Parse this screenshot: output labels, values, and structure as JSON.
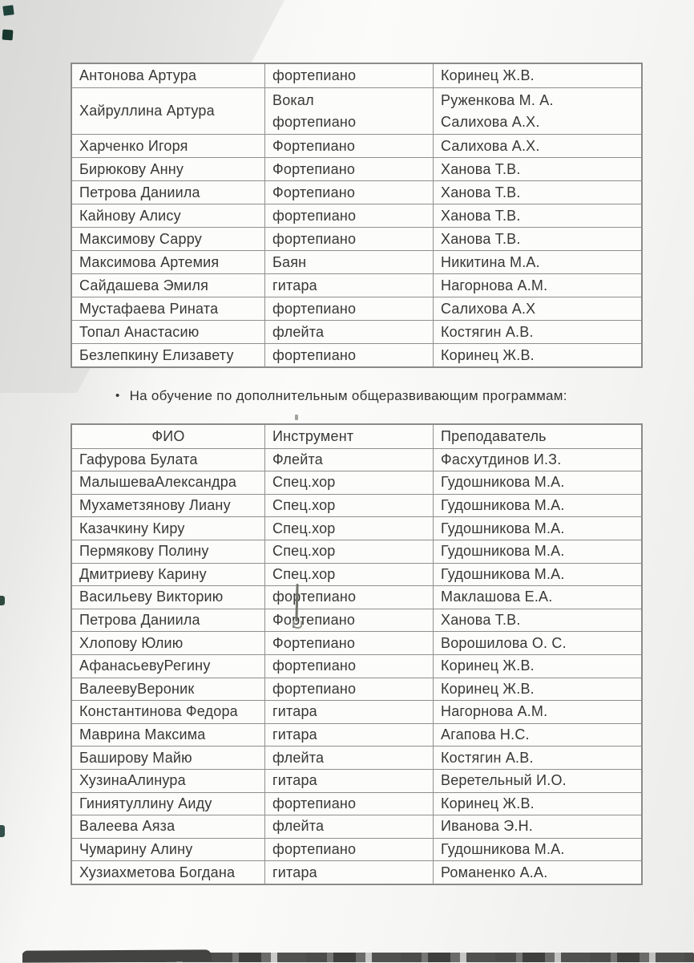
{
  "document": {
    "bullet_marker": "•",
    "bullet_text": "На обучение по дополнительным общеразвивающим программам:"
  },
  "colors": {
    "page_bg": "#f1f1ef",
    "table_bg": "#fcfcfa",
    "table_border": "#8f8f8d",
    "text": "#383838",
    "corner_mark_teal": "#1f423a",
    "bottom_bar": "#4c4c4a"
  },
  "tables": [
    {
      "name": "enrolled-students-table",
      "headers": null,
      "rows": [
        [
          [
            "Антонова Артура"
          ],
          [
            "фортепиано"
          ],
          [
            "Коринец Ж.В."
          ]
        ],
        [
          [
            "Хайруллина Артура"
          ],
          [
            "Вокал",
            "фортепиано"
          ],
          [
            "Руженкова М. А.",
            "Салихова А.Х."
          ]
        ],
        [
          [
            "Харченко Игоря"
          ],
          [
            "Фортепиано"
          ],
          [
            "Салихова А.Х."
          ]
        ],
        [
          [
            "Бирюкову Анну"
          ],
          [
            "Фортепиано"
          ],
          [
            "Ханова Т.В."
          ]
        ],
        [
          [
            "Петрова Даниила"
          ],
          [
            "Фортепиано"
          ],
          [
            "Ханова Т.В."
          ]
        ],
        [
          [
            "Кайнову Алису"
          ],
          [
            "фортепиано"
          ],
          [
            "Ханова Т.В."
          ]
        ],
        [
          [
            "Максимову Сарру"
          ],
          [
            "фортепиано"
          ],
          [
            "Ханова Т.В."
          ]
        ],
        [
          [
            "Максимова Артемия"
          ],
          [
            "Баян"
          ],
          [
            "Никитина М.А."
          ]
        ],
        [
          [
            "Сайдашева Эмиля"
          ],
          [
            "гитара"
          ],
          [
            "Нагорнова А.М."
          ]
        ],
        [
          [
            "Мустафаева Рината"
          ],
          [
            "фортепиано"
          ],
          [
            "Салихова А.Х"
          ]
        ],
        [
          [
            "Топал Анастасию"
          ],
          [
            "флейта"
          ],
          [
            "Костягин А.В."
          ]
        ],
        [
          [
            "Безлепкину Елизавету"
          ],
          [
            "фортепиано"
          ],
          [
            "Коринец Ж.В."
          ]
        ]
      ]
    },
    {
      "name": "general-development-programs-table",
      "headers": [
        "ФИО",
        "Инструмент",
        "Преподаватель"
      ],
      "rows": [
        [
          [
            "Гафурова Булата"
          ],
          [
            "Флейта"
          ],
          [
            "Фасхутдинов И.З."
          ]
        ],
        [
          [
            "МалышеваАлександра"
          ],
          [
            "Спец.хор"
          ],
          [
            "Гудошникова М.А."
          ]
        ],
        [
          [
            "Мухаметзянову Лиану"
          ],
          [
            "Спец.хор"
          ],
          [
            "Гудошникова М.А."
          ]
        ],
        [
          [
            "Казачкину Киру"
          ],
          [
            "Спец.хор"
          ],
          [
            "Гудошникова М.А."
          ]
        ],
        [
          [
            "Пермякову Полину"
          ],
          [
            "Спец.хор"
          ],
          [
            "Гудошникова М.А."
          ]
        ],
        [
          [
            "Дмитриеву Карину"
          ],
          [
            "Спец.хор"
          ],
          [
            "Гудошникова М.А."
          ]
        ],
        [
          [
            "Васильеву Викторию"
          ],
          [
            "фортепиано"
          ],
          [
            "Маклашова Е.А."
          ]
        ],
        [
          [
            "Петрова Даниила"
          ],
          [
            "Фортепиано"
          ],
          [
            "Ханова Т.В."
          ]
        ],
        [
          [
            "Хлопову Юлию"
          ],
          [
            "Фортепиано"
          ],
          [
            "Ворошилова О. С."
          ]
        ],
        [
          [
            "АфанасьевуРегину"
          ],
          [
            "фортепиано"
          ],
          [
            "Коринец Ж.В."
          ]
        ],
        [
          [
            "ВалеевуВероник"
          ],
          [
            "фортепиано"
          ],
          [
            "Коринец Ж.В."
          ]
        ],
        [
          [
            "Константинова Федора"
          ],
          [
            "гитара"
          ],
          [
            "Нагорнова А.М."
          ]
        ],
        [
          [
            "Маврина Максима"
          ],
          [
            "гитара"
          ],
          [
            "Агапова Н.С."
          ]
        ],
        [
          [
            "Баширову Майю"
          ],
          [
            "флейта"
          ],
          [
            "Костягин А.В."
          ]
        ],
        [
          [
            "ХузинаАлинура"
          ],
          [
            "гитара"
          ],
          [
            "Веретельный И.О."
          ]
        ],
        [
          [
            "Гиниятуллину Аиду"
          ],
          [
            "фортепиано"
          ],
          [
            "Коринец Ж.В."
          ]
        ],
        [
          [
            "Валеева Аяза"
          ],
          [
            "флейта"
          ],
          [
            "Иванова Э.Н."
          ]
        ],
        [
          [
            "Чумарину Алину"
          ],
          [
            "фортепиано"
          ],
          [
            "Гудошникова М.А."
          ]
        ],
        [
          [
            "Хузиахметова Богдана"
          ],
          [
            "гитара"
          ],
          [
            "Романенко А.А."
          ]
        ]
      ]
    }
  ]
}
